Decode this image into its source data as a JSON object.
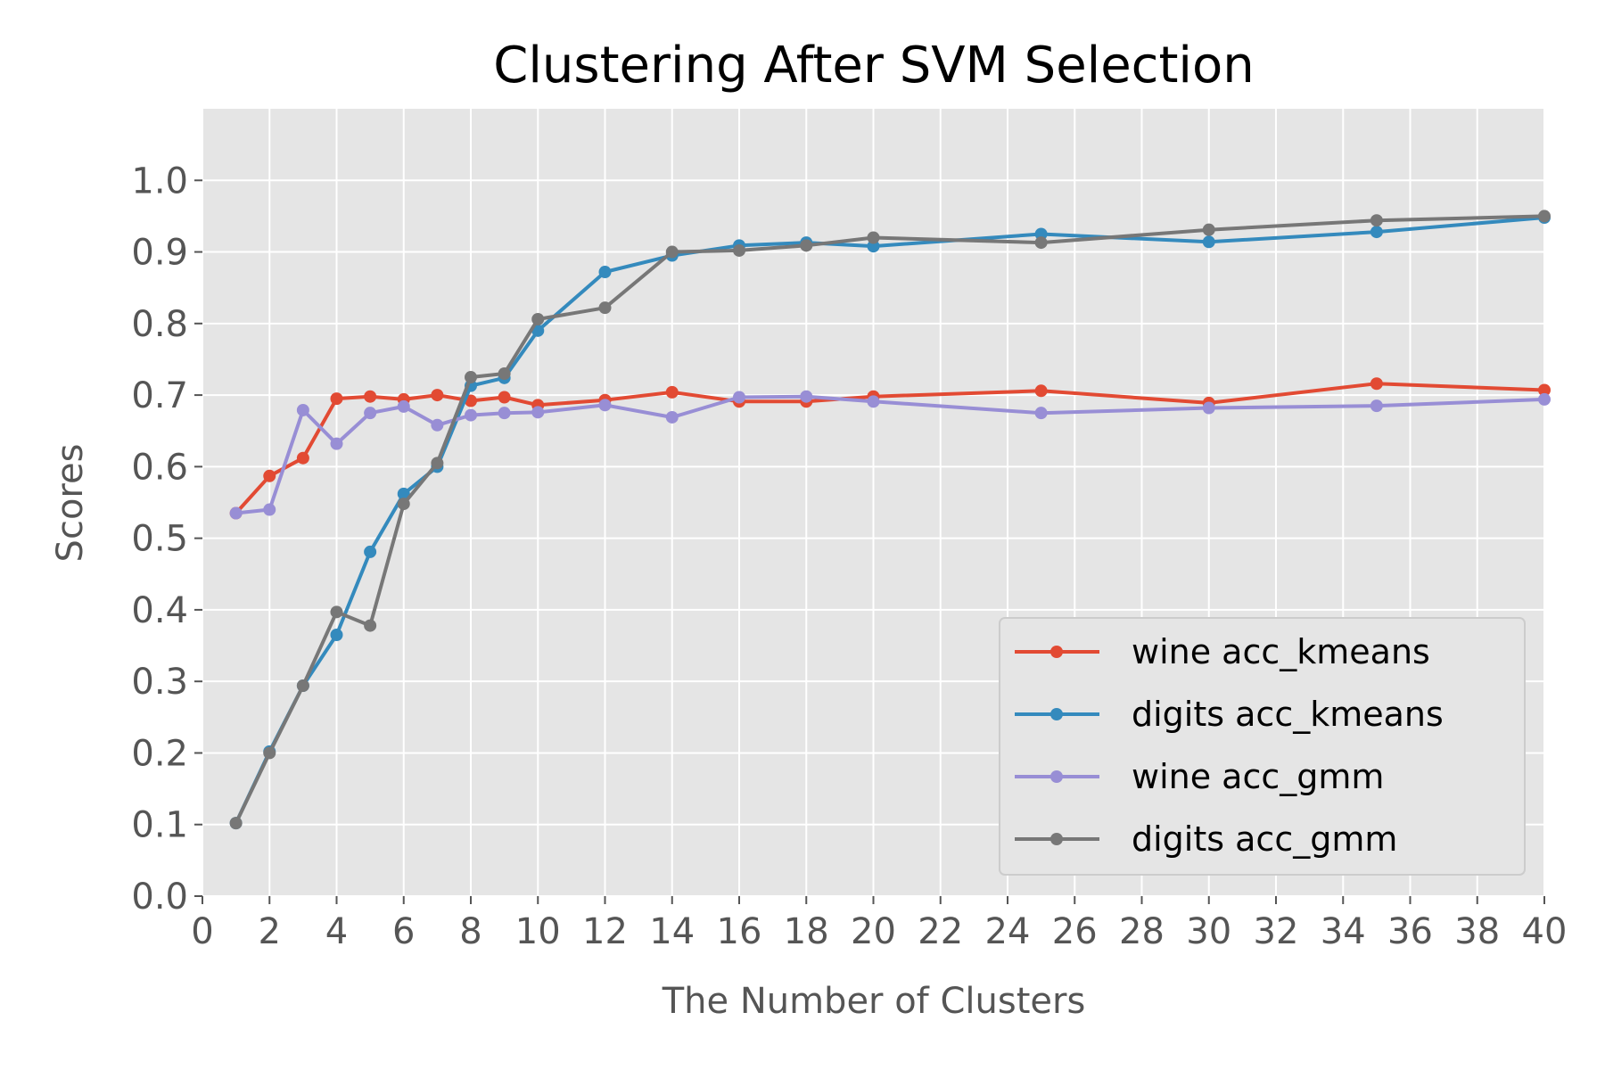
{
  "chart_data": {
    "type": "line",
    "title": "Clustering After SVM Selection",
    "xlabel": "The Number of Clusters",
    "ylabel": "Scores",
    "xlim": [
      0,
      40
    ],
    "ylim": [
      0,
      1.1
    ],
    "xticks": [
      0,
      2,
      4,
      6,
      8,
      10,
      12,
      14,
      16,
      18,
      20,
      22,
      24,
      26,
      28,
      30,
      32,
      34,
      36,
      38,
      40
    ],
    "xtick_labels": [
      "0",
      "2",
      "4",
      "6",
      "8",
      "10",
      "12",
      "14",
      "16",
      "18",
      "20",
      "22",
      "24",
      "26",
      "28",
      "30",
      "32",
      "34",
      "36",
      "38",
      "40"
    ],
    "yticks": [
      0.0,
      0.1,
      0.2,
      0.3,
      0.4,
      0.5,
      0.6,
      0.7,
      0.8,
      0.9,
      1.0
    ],
    "ytick_labels": [
      "0.0",
      "0.1",
      "0.2",
      "0.3",
      "0.4",
      "0.5",
      "0.6",
      "0.7",
      "0.8",
      "0.9",
      "1.0"
    ],
    "grid": true,
    "legend_position": "lower-right",
    "style": {
      "background": "#e5e5e5",
      "grid_color": "#ffffff"
    },
    "x": [
      1,
      2,
      3,
      4,
      5,
      6,
      7,
      8,
      9,
      10,
      12,
      14,
      16,
      18,
      20,
      25,
      30,
      35,
      40
    ],
    "series": [
      {
        "name": "wine acc_kmeans",
        "color": "#e24a33",
        "values": [
          0.535,
          0.587,
          0.612,
          0.695,
          0.698,
          0.694,
          0.7,
          0.692,
          0.697,
          0.686,
          0.693,
          0.704,
          0.691,
          0.691,
          0.698,
          0.706,
          0.689,
          0.716,
          0.707
        ]
      },
      {
        "name": "digits acc_kmeans",
        "color": "#348abd",
        "values": [
          0.102,
          0.202,
          0.294,
          0.365,
          0.481,
          0.562,
          0.6,
          0.713,
          0.724,
          0.79,
          0.872,
          0.895,
          0.909,
          0.913,
          0.908,
          0.925,
          0.914,
          0.928,
          0.948
        ]
      },
      {
        "name": "wine acc_gmm",
        "color": "#988ed5",
        "values": [
          0.535,
          0.54,
          0.679,
          0.632,
          0.675,
          0.684,
          0.658,
          0.672,
          0.675,
          0.676,
          0.686,
          0.669,
          0.697,
          0.698,
          0.691,
          0.675,
          0.682,
          0.685,
          0.694
        ]
      },
      {
        "name": "digits acc_gmm",
        "color": "#777777",
        "values": [
          0.102,
          0.2,
          0.294,
          0.397,
          0.378,
          0.548,
          0.605,
          0.725,
          0.73,
          0.806,
          0.822,
          0.9,
          0.902,
          0.909,
          0.92,
          0.913,
          0.931,
          0.944,
          0.95
        ]
      }
    ]
  }
}
